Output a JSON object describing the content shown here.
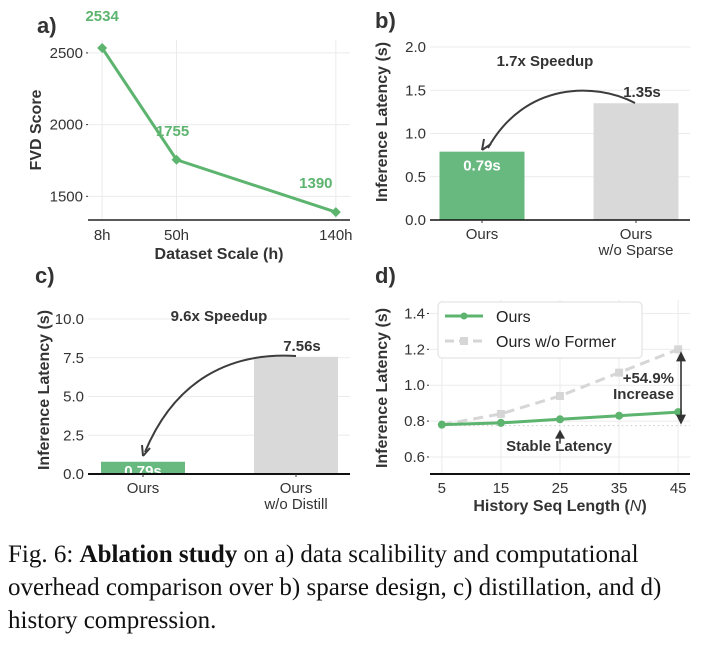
{
  "colors": {
    "green": "#5cb46e",
    "bar_green": "#67b97f",
    "gray_bar": "#d9d9d9",
    "gray_line": "#d6d6d6",
    "text": "#333333",
    "arrow": "#3c3c3c"
  },
  "chart_data": [
    {
      "panel": "a)",
      "type": "line",
      "title": "",
      "xlabel": "Dataset Scale (h)",
      "ylabel": "FVD Score",
      "x": [
        8,
        50,
        140
      ],
      "categories": [
        "8h",
        "50h",
        "140h"
      ],
      "values": [
        2534,
        1755,
        1390
      ],
      "data_labels": [
        "2534",
        "1755",
        "1390"
      ],
      "yticks": [
        1500,
        2000,
        2500
      ],
      "ytick_labels": [
        "1500",
        "2000",
        "2500"
      ],
      "ylim": [
        1335,
        2590
      ],
      "xlim": [
        0,
        148
      ],
      "marker": "diamond",
      "grid": true
    },
    {
      "panel": "b)",
      "type": "bar",
      "ylabel": "Inference Latency (s)",
      "categories": [
        "Ours",
        "Ours\nw/o Sparse"
      ],
      "category_lines": [
        [
          "Ours"
        ],
        [
          "Ours",
          "w/o Sparse"
        ]
      ],
      "values": [
        0.79,
        1.35
      ],
      "data_labels": [
        "0.79s",
        "1.35s"
      ],
      "annotation": "1.7x Speedup",
      "yticks": [
        0.0,
        0.5,
        1.0,
        1.5,
        2.0
      ],
      "ytick_labels": [
        "0.0",
        "0.5",
        "1.0",
        "1.5",
        "2.0"
      ],
      "ylim": [
        0,
        2.0
      ],
      "grid": true
    },
    {
      "panel": "c)",
      "type": "bar",
      "ylabel": "Inference Latency (s)",
      "categories": [
        "Ours",
        "Ours\nw/o Distill"
      ],
      "category_lines": [
        [
          "Ours"
        ],
        [
          "Ours",
          "w/o Distill"
        ]
      ],
      "values": [
        0.79,
        7.56
      ],
      "data_labels": [
        "0.79s",
        "7.56s"
      ],
      "annotation": "9.6x Speedup",
      "yticks": [
        0.0,
        2.5,
        5.0,
        7.5,
        10.0
      ],
      "ytick_labels": [
        "0.0",
        "2.5",
        "5.0",
        "7.5",
        "10.0"
      ],
      "ylim": [
        0,
        10.0
      ],
      "grid": true
    },
    {
      "panel": "d)",
      "type": "line",
      "xlabel_parts": [
        "History Seq Length (",
        "N",
        ")"
      ],
      "xlabel": "History Seq Length (N)",
      "ylabel": "Inference Latency (s)",
      "x": [
        5,
        15,
        25,
        35,
        45
      ],
      "xtick_labels": [
        "5",
        "15",
        "25",
        "35",
        "45"
      ],
      "series": [
        {
          "name": "Ours",
          "values": [
            0.78,
            0.79,
            0.81,
            0.83,
            0.85
          ],
          "style": "solid",
          "marker": "circle"
        },
        {
          "name": "Ours w/o Former",
          "values": [
            0.78,
            0.84,
            0.94,
            1.07,
            1.2
          ],
          "style": "dashed",
          "marker": "square"
        }
      ],
      "reference_line": 0.775,
      "annotations": [
        "+54.9%",
        "Increase",
        "Stable Latency"
      ],
      "yticks": [
        0.6,
        0.8,
        1.0,
        1.2,
        1.4
      ],
      "ytick_labels": [
        "0.6",
        "0.8",
        "1.0",
        "1.2",
        "1.4"
      ],
      "ylim": [
        0.505,
        1.475
      ],
      "xlim": [
        3,
        47
      ],
      "legend": "upper-left",
      "grid": true
    }
  ],
  "caption": {
    "prefix": "Fig. 6: ",
    "bold": "Ablation study",
    "rest": " on a) data scalibility and computational overhead comparison over b) sparse design, c) distillation, and d) history compression."
  }
}
